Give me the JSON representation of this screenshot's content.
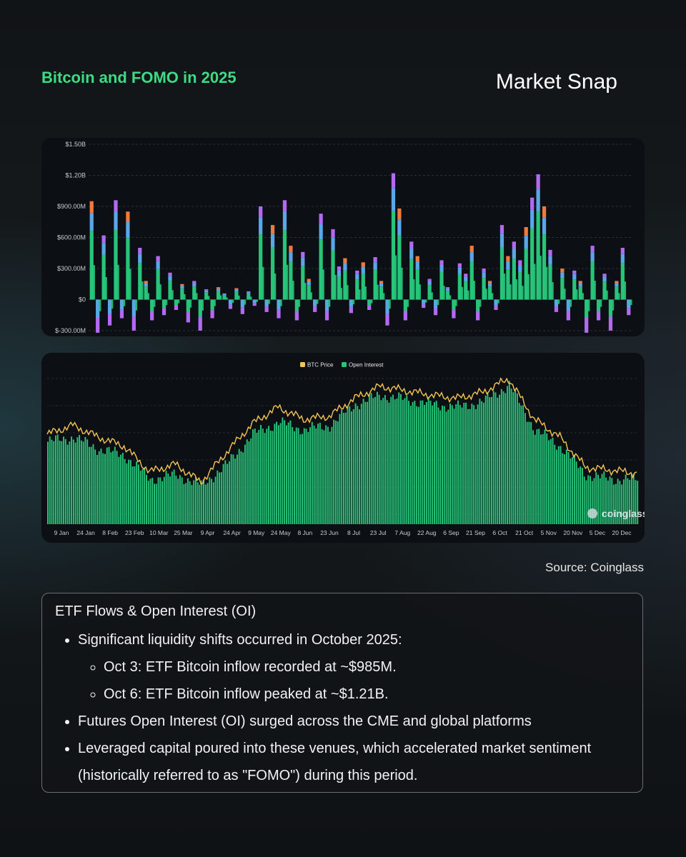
{
  "header": {
    "title": "Bitcoin and FOMO in 2025",
    "brand": "Market Snap"
  },
  "colors": {
    "accent": "#3ddc84",
    "inflow_green": "#27c57a",
    "purple": "#b36af2",
    "blue": "#5aa7e8",
    "orange": "#ee7a3c",
    "price_line": "#f5c451"
  },
  "chart_data": [
    {
      "type": "bar",
      "title": "",
      "xlabel": "",
      "ylabel": "",
      "ylim": [
        -300000000,
        1500000000
      ],
      "ytick_labels": [
        "$1.50B",
        "$1.20B",
        "$900.00M",
        "$600.00M",
        "$300.00M",
        "$0",
        "$-300.00M"
      ],
      "ytick_values": [
        1500000000,
        1200000000,
        900000000,
        600000000,
        300000000,
        0,
        -300000000
      ],
      "grid": true,
      "stacked": true,
      "note": "Daily ETF net flows per issuer, stacked; values approximate, selected days read from chart",
      "annotated_points": [
        {
          "date": "3 Oct",
          "value": 985000000
        },
        {
          "date": "6 Oct",
          "value": 1210000000
        }
      ],
      "series": [
        {
          "values": [
            950000000,
            -320000000,
            620000000,
            -250000000,
            960000000,
            -180000000,
            850000000,
            -300000000,
            500000000,
            180000000,
            -200000000,
            420000000,
            -150000000,
            260000000,
            -100000000,
            150000000,
            -220000000,
            180000000,
            -300000000,
            100000000,
            -180000000,
            120000000,
            60000000,
            -90000000,
            110000000,
            -140000000,
            80000000,
            -60000000,
            900000000,
            -120000000,
            720000000,
            -180000000,
            960000000,
            520000000,
            -200000000,
            460000000,
            200000000,
            -120000000,
            830000000,
            -200000000,
            680000000,
            320000000,
            400000000,
            -130000000,
            280000000,
            360000000,
            -100000000,
            410000000,
            180000000,
            -250000000,
            1220000000,
            880000000,
            -200000000,
            560000000,
            420000000,
            -80000000,
            200000000,
            -150000000,
            380000000,
            120000000,
            -180000000,
            350000000,
            250000000,
            520000000,
            -200000000,
            300000000,
            180000000,
            -100000000,
            720000000,
            420000000,
            560000000,
            380000000,
            700000000,
            985000000,
            1210000000,
            900000000,
            480000000,
            -120000000,
            300000000,
            -200000000,
            280000000,
            180000000,
            -320000000,
            520000000,
            -200000000,
            250000000,
            -300000000,
            180000000,
            500000000,
            -150000000
          ]
        }
      ]
    },
    {
      "type": "line",
      "title": "",
      "xlabel": "",
      "ylabel": "",
      "legend": [
        "BTC Price",
        "Open Interest"
      ],
      "legend_position": "top-center",
      "x_tick_labels": [
        "9 Jan",
        "24 Jan",
        "8 Feb",
        "23 Feb",
        "10 Mar",
        "25 Mar",
        "9 Apr",
        "24 Apr",
        "9 May",
        "24 May",
        "8 Jun",
        "23 Jun",
        "8 Jul",
        "23 Jul",
        "7 Aug",
        "22 Aug",
        "6 Sep",
        "21 Sep",
        "6 Oct",
        "21 Oct",
        "5 Nov",
        "20 Nov",
        "5 Dec",
        "20 Dec"
      ],
      "series": [
        {
          "name": "BTC Price",
          "x": [
            "9 Jan",
            "24 Jan",
            "8 Feb",
            "23 Feb",
            "10 Mar",
            "25 Mar",
            "9 Apr",
            "24 Apr",
            "9 May",
            "24 May",
            "8 Jun",
            "23 Jun",
            "8 Jul",
            "23 Jul",
            "7 Aug",
            "22 Aug",
            "6 Sep",
            "21 Sep",
            "6 Oct",
            "21 Oct",
            "5 Nov",
            "20 Nov",
            "5 Dec",
            "20 Dec"
          ],
          "values": [
            0.6,
            0.66,
            0.58,
            0.52,
            0.35,
            0.4,
            0.28,
            0.48,
            0.67,
            0.78,
            0.7,
            0.72,
            0.84,
            0.92,
            0.89,
            0.86,
            0.84,
            0.88,
            0.97,
            0.7,
            0.58,
            0.38,
            0.36,
            0.34
          ]
        },
        {
          "name": "Open Interest",
          "x": [
            "9 Jan",
            "24 Jan",
            "8 Feb",
            "23 Feb",
            "10 Mar",
            "25 Mar",
            "9 Apr",
            "24 Apr",
            "9 May",
            "24 May",
            "8 Jun",
            "23 Jun",
            "8 Jul",
            "23 Jul",
            "7 Aug",
            "22 Aug",
            "6 Sep",
            "21 Sep",
            "6 Oct",
            "21 Oct",
            "5 Nov",
            "20 Nov",
            "5 Dec",
            "20 Dec"
          ],
          "values": [
            0.55,
            0.58,
            0.5,
            0.46,
            0.3,
            0.33,
            0.26,
            0.4,
            0.6,
            0.68,
            0.63,
            0.66,
            0.8,
            0.86,
            0.83,
            0.8,
            0.78,
            0.82,
            0.93,
            0.63,
            0.52,
            0.33,
            0.3,
            0.3
          ]
        }
      ],
      "value_scale": "normalized (axis labels cropped in original)",
      "watermark": "coinglass"
    }
  ],
  "source": "Source: Coinglass",
  "notes": {
    "title": "ETF Flows & Open Interest (OI)",
    "bullet1": "Significant liquidity shifts occurred in October 2025:",
    "sub1": "Oct 3: ETF Bitcoin inflow recorded at ~$985M.",
    "sub2": "Oct 6: ETF Bitcoin inflow peaked at ~$1.21B.",
    "bullet2": "Futures Open Interest (OI) surged across the CME and global platforms",
    "bullet3": "Leveraged capital poured into these venues, which accelerated market sentiment (historically referred to as \"FOMO\") during this period."
  }
}
